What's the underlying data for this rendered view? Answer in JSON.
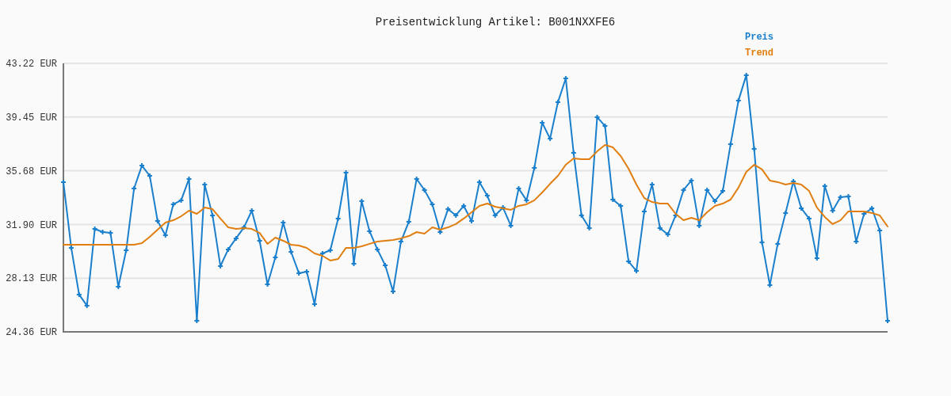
{
  "chart_data": {
    "type": "line",
    "title": "Preisentwicklung Artikel: B001NXXFE6",
    "categories": [
      null,
      null,
      null,
      null,
      null,
      null,
      null,
      null,
      null,
      null,
      null,
      null,
      null,
      null,
      null,
      null,
      null,
      null,
      null,
      null,
      null,
      null,
      null,
      null,
      null,
      null,
      null,
      null,
      null,
      null,
      null,
      null,
      null,
      null,
      null,
      null,
      null,
      null,
      null,
      null,
      null,
      null,
      null,
      null,
      null,
      null,
      null,
      null,
      null,
      null,
      null,
      null,
      null,
      null,
      null,
      null,
      null,
      null,
      null,
      null,
      null,
      null,
      null,
      null,
      null,
      null,
      null,
      null,
      null,
      null,
      null,
      null,
      null,
      null,
      null,
      null,
      null,
      null,
      null,
      null,
      null,
      null,
      null,
      null,
      null,
      null,
      null,
      null,
      null,
      null,
      null,
      null,
      null,
      null,
      null,
      null,
      null,
      null,
      null,
      null,
      null,
      null,
      null,
      null,
      null,
      null
    ],
    "series": [
      {
        "name": "Preis",
        "color": "#1a7fcc",
        "marker": "cross",
        "values": [
          34.88,
          30.26,
          26.98,
          26.2,
          31.59,
          31.37,
          31.31,
          27.53,
          30.09,
          34.43,
          36.04,
          35.32,
          32.15,
          31.15,
          33.32,
          33.6,
          35.1,
          25.14,
          34.71,
          32.54,
          28.98,
          30.15,
          30.93,
          31.7,
          32.87,
          30.76,
          27.7,
          29.59,
          32.04,
          29.98,
          28.48,
          28.59,
          26.31,
          29.87,
          30.09,
          32.32,
          35.54,
          29.14,
          33.54,
          31.43,
          30.15,
          29.03,
          27.2,
          30.7,
          32.09,
          35.1,
          34.32,
          33.32,
          31.37,
          32.98,
          32.54,
          33.21,
          32.15,
          34.88,
          33.93,
          32.54,
          33.09,
          31.82,
          34.43,
          33.6,
          35.88,
          39.05,
          37.93,
          40.49,
          42.16,
          36.93,
          32.54,
          31.65,
          39.44,
          38.82,
          33.65,
          33.21,
          29.31,
          28.64,
          32.82,
          34.71,
          31.65,
          31.2,
          32.54,
          34.32,
          34.99,
          31.82,
          34.32,
          33.54,
          34.26,
          37.55,
          40.61,
          42.39,
          37.21,
          30.65,
          27.64,
          30.54,
          32.71,
          34.93,
          33.04,
          32.32,
          29.53,
          34.6,
          32.87,
          33.82,
          33.87,
          30.7,
          32.65,
          33.04,
          31.48,
          25.14
        ]
      },
      {
        "name": "Trend",
        "color": "#e07f10",
        "marker": "none",
        "values": [
          30.48,
          30.48,
          30.48,
          30.48,
          30.48,
          30.48,
          30.48,
          30.48,
          30.48,
          30.48,
          30.59,
          31.04,
          31.54,
          32.04,
          32.2,
          32.48,
          32.87,
          32.65,
          33.09,
          32.98,
          32.32,
          31.7,
          31.59,
          31.65,
          31.59,
          31.31,
          30.54,
          30.98,
          30.76,
          30.48,
          30.42,
          30.26,
          29.87,
          29.7,
          29.37,
          29.48,
          30.26,
          30.26,
          30.37,
          30.54,
          30.7,
          30.76,
          30.81,
          30.93,
          31.09,
          31.37,
          31.26,
          31.7,
          31.54,
          31.7,
          31.93,
          32.32,
          32.76,
          33.21,
          33.37,
          33.15,
          33.04,
          32.93,
          33.21,
          33.32,
          33.6,
          34.15,
          34.76,
          35.32,
          36.1,
          36.54,
          36.49,
          36.49,
          37.04,
          37.49,
          37.32,
          36.71,
          35.82,
          34.71,
          33.76,
          33.48,
          33.37,
          33.37,
          32.65,
          32.2,
          32.37,
          32.2,
          32.76,
          33.21,
          33.37,
          33.65,
          34.49,
          35.6,
          36.1,
          35.77,
          34.99,
          34.88,
          34.71,
          34.82,
          34.71,
          34.26,
          33.09,
          32.43,
          31.93,
          32.2,
          32.82,
          32.82,
          32.82,
          32.71,
          32.54,
          31.76
        ]
      }
    ],
    "ylim": [
      24.36,
      43.22
    ],
    "yticks": [
      {
        "value": 24.36,
        "label": "24.36 EUR"
      },
      {
        "value": 28.13,
        "label": "28.13 EUR"
      },
      {
        "value": 31.9,
        "label": "31.90 EUR"
      },
      {
        "value": 35.68,
        "label": "35.68 EUR"
      },
      {
        "value": 39.45,
        "label": "39.45 EUR"
      },
      {
        "value": 43.22,
        "label": "43.22 EUR"
      }
    ],
    "grid": "y",
    "legend": "top right",
    "line_style": "solid"
  }
}
